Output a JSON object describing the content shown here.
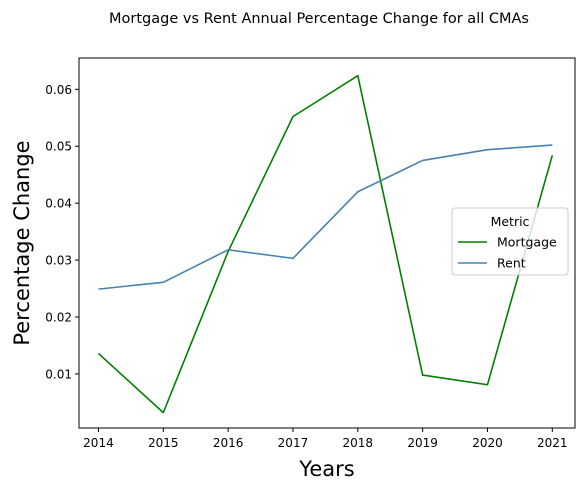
{
  "chart_data": {
    "type": "line",
    "title": "Mortgage vs Rent Annual Percentage Change for all CMAs",
    "xlabel": "Years",
    "ylabel": "Percentage Change",
    "x": [
      2014,
      2015,
      2016,
      2017,
      2018,
      2019,
      2020,
      2021
    ],
    "xlim": [
      2013.7,
      2021.35
    ],
    "ylim": [
      0.0005,
      0.0655
    ],
    "yticks": [
      0.01,
      0.02,
      0.03,
      0.04,
      0.05,
      0.06
    ],
    "ytick_labels": [
      "0.01",
      "0.02",
      "0.03",
      "0.04",
      "0.05",
      "0.06"
    ],
    "xtick_labels": [
      "2014",
      "2015",
      "2016",
      "2017",
      "2018",
      "2019",
      "2020",
      "2021"
    ],
    "grid": false,
    "legend": {
      "title": "Metric",
      "placement": "center-right"
    },
    "series": [
      {
        "name": "Mortgage",
        "color": "#008000",
        "values": [
          0.0136,
          0.0032,
          0.0315,
          0.0552,
          0.0624,
          0.0098,
          0.0081,
          0.0484
        ]
      },
      {
        "name": "Rent",
        "color": "#4682b4",
        "values": [
          0.0249,
          0.0261,
          0.0318,
          0.0303,
          0.042,
          0.0475,
          0.0494,
          0.0502
        ]
      }
    ]
  }
}
